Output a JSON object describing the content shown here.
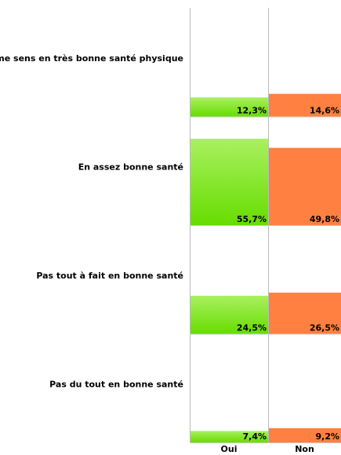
{
  "chart_data": {
    "type": "bar",
    "categories": [
      "Je me sens en très bonne santé physique",
      "En assez bonne santé",
      "Pas tout à fait en bonne santé",
      "Pas du tout en bonne santé"
    ],
    "series": [
      {
        "name": "Oui",
        "color": "#66dd00",
        "values": [
          12.3,
          55.7,
          24.5,
          7.4
        ],
        "value_labels": [
          "12,3%",
          "55,7%",
          "24,5%",
          "7,4%"
        ]
      },
      {
        "name": "Non",
        "color": "#ff8040",
        "values": [
          14.6,
          49.8,
          26.5,
          9.2
        ],
        "value_labels": [
          "14,6%",
          "49,8%",
          "26,5%",
          "9,2%"
        ]
      }
    ],
    "ylim": [
      0,
      70
    ]
  }
}
